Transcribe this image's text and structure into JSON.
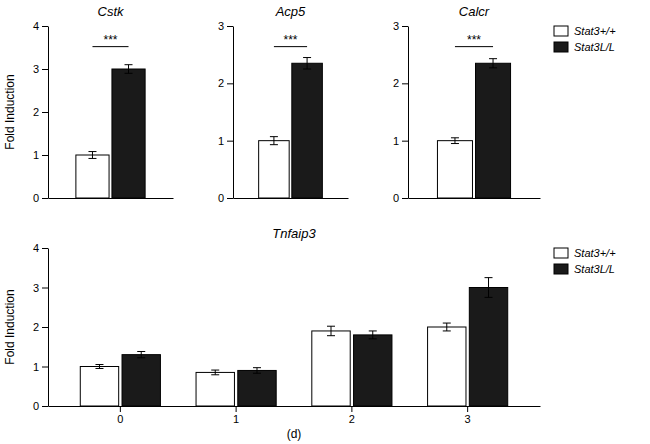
{
  "chart_data": [
    {
      "type": "bar",
      "title": "Cstk",
      "categories": [
        null
      ],
      "series": [
        {
          "name": "Stat3+/+",
          "color": "#ffffff",
          "values": [
            1.0
          ],
          "errors": [
            0.08
          ]
        },
        {
          "name": "Stat3L/L",
          "color": "#1a1a1a",
          "values": [
            3.0
          ],
          "errors": [
            0.1
          ]
        }
      ],
      "y_label": "Fold Induction",
      "ylim": [
        0,
        4
      ],
      "yticks": [
        0,
        1,
        2,
        3,
        4
      ],
      "tick_labels": "y",
      "annotations": [
        "***"
      ],
      "grid": false,
      "legend": false
    },
    {
      "type": "bar",
      "title": "Acp5",
      "categories": [
        null
      ],
      "series": [
        {
          "name": "Stat3+/+",
          "color": "#ffffff",
          "values": [
            1.0
          ],
          "errors": [
            0.07
          ]
        },
        {
          "name": "Stat3L/L",
          "color": "#1a1a1a",
          "values": [
            2.35
          ],
          "errors": [
            0.1
          ]
        }
      ],
      "ylim": [
        0,
        3
      ],
      "yticks": [
        0,
        1,
        2,
        3
      ],
      "tick_labels": "y",
      "annotations": [
        "***"
      ],
      "grid": false,
      "legend": false
    },
    {
      "type": "bar",
      "title": "Calcr",
      "categories": [
        null
      ],
      "series": [
        {
          "name": "Stat3+/+",
          "color": "#ffffff",
          "values": [
            1.0
          ],
          "errors": [
            0.05
          ]
        },
        {
          "name": "Stat3L/L",
          "color": "#1a1a1a",
          "values": [
            2.35
          ],
          "errors": [
            0.08
          ]
        }
      ],
      "ylim": [
        0,
        3
      ],
      "yticks": [
        0,
        1,
        2,
        3
      ],
      "tick_labels": "y",
      "annotations": [
        "***"
      ],
      "grid": false,
      "legend": "upper right"
    },
    {
      "type": "bar",
      "title": "Tnfaip3",
      "categories": [
        "0",
        "1",
        "2",
        "3"
      ],
      "series": [
        {
          "name": "Stat3+/+",
          "color": "#ffffff",
          "values": [
            1.0,
            0.85,
            1.9,
            2.0
          ],
          "errors": [
            0.05,
            0.06,
            0.12,
            0.1
          ]
        },
        {
          "name": "Stat3L/L",
          "color": "#1a1a1a",
          "values": [
            1.3,
            0.9,
            1.8,
            3.0
          ],
          "errors": [
            0.08,
            0.07,
            0.1,
            0.25
          ]
        }
      ],
      "x_label": "(d)",
      "y_label": "Fold Induction",
      "ylim": [
        0,
        4
      ],
      "yticks": [
        0,
        1,
        2,
        3,
        4
      ],
      "grid": false,
      "legend": "upper right"
    }
  ]
}
